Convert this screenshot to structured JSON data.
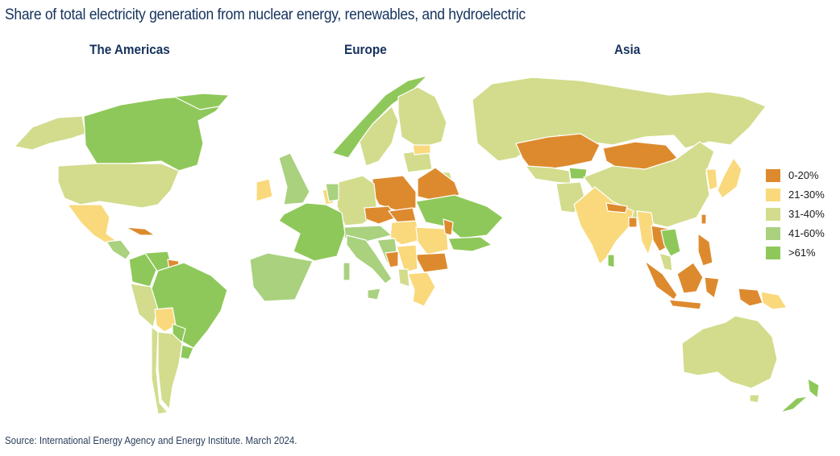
{
  "title": "Share of total electricity generation from nuclear energy, renewables, and hydroelectric",
  "regions": {
    "americas": "The Americas",
    "europe": "Europe",
    "asia": "Asia"
  },
  "source": "Source: International Energy Agency and Energy Institute. March 2024.",
  "colors": {
    "c0_20": "#dd8a2e",
    "c21_30": "#f9d97c",
    "c31_40": "#d2dc8c",
    "c41_60": "#a9d17e",
    "c61": "#8fc85a",
    "border": "#ffffff"
  },
  "legend": [
    {
      "label": "0-20%",
      "color": "#dd8a2e"
    },
    {
      "label": "21-30%",
      "color": "#f9d97c"
    },
    {
      "label": "31-40%",
      "color": "#d2dc8c"
    },
    {
      "label": "41-60%",
      "color": "#a9d17e"
    },
    {
      "label": ">61%",
      "color": "#8fc85a"
    }
  ]
}
